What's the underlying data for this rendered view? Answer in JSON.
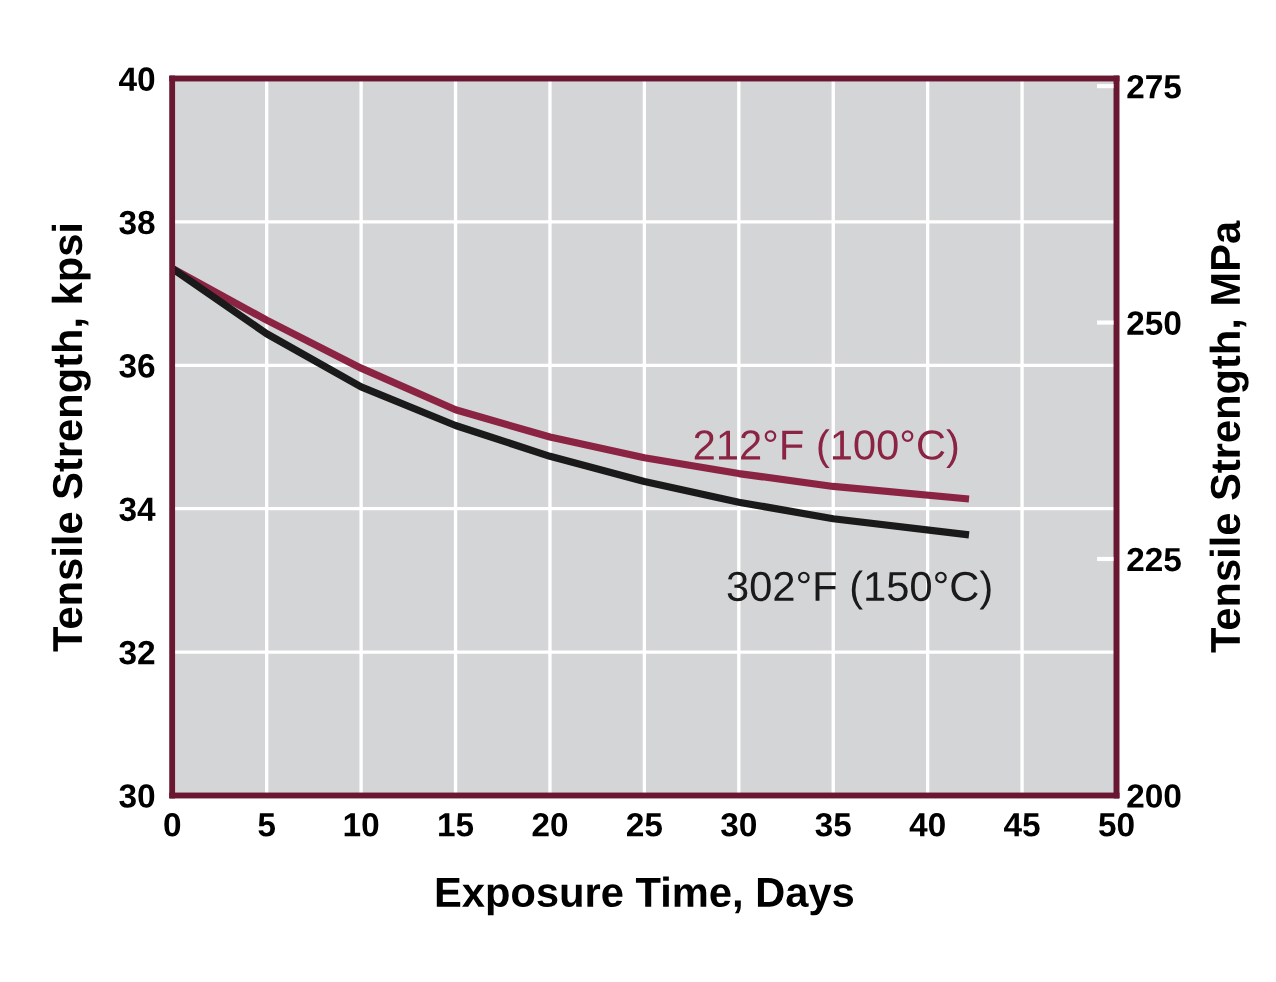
{
  "chart_data": {
    "type": "line",
    "xlabel": "Exposure Time, Days",
    "ylabel": "Tensile Strength, kpsi",
    "y2label": "Tensile Strength, MPa",
    "x": [
      0,
      5,
      10,
      15,
      20,
      25,
      30,
      35,
      42
    ],
    "series": [
      {
        "name": "212°F (100°C)",
        "color": "#8b2343",
        "values": [
          37.35,
          36.63,
          35.96,
          35.38,
          35.0,
          34.71,
          34.49,
          34.31,
          34.14
        ]
      },
      {
        "name": "302°F (150°C)",
        "color": "#1a1a1a",
        "values": [
          37.35,
          36.44,
          35.7,
          35.16,
          34.73,
          34.38,
          34.09,
          33.86,
          33.64
        ]
      }
    ],
    "xlim": [
      0,
      50
    ],
    "xticks": [
      0,
      5,
      10,
      15,
      20,
      25,
      30,
      35,
      40,
      45,
      50
    ],
    "ylim": [
      30,
      40
    ],
    "yticks": [
      30,
      32,
      34,
      36,
      38,
      40
    ],
    "y2lim": [
      200,
      275.8
    ],
    "y2ticks": [
      200,
      225,
      250,
      275
    ],
    "grid": true,
    "legend": false,
    "marker": "none",
    "line_style": "solid"
  }
}
